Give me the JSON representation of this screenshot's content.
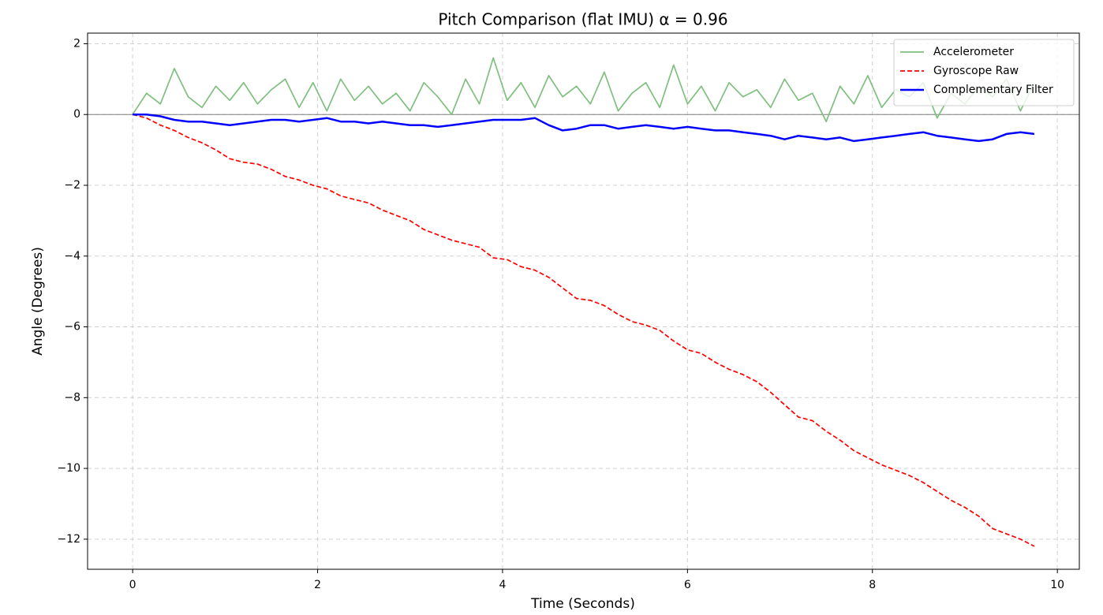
{
  "chart_data": {
    "type": "line",
    "title": "Pitch Comparison (flat IMU) α = 0.96",
    "xlabel": "Time (Seconds)",
    "ylabel": "Angle (Degrees)",
    "x": [
      0,
      0.15,
      0.3,
      0.45,
      0.6,
      0.75,
      0.9,
      1.05,
      1.2,
      1.35,
      1.5,
      1.65,
      1.8,
      1.95,
      2.1,
      2.25,
      2.4,
      2.55,
      2.7,
      2.85,
      3,
      3.15,
      3.3,
      3.45,
      3.6,
      3.75,
      3.9,
      4.05,
      4.2,
      4.35,
      4.5,
      4.65,
      4.8,
      4.95,
      5.1,
      5.25,
      5.4,
      5.55,
      5.7,
      5.85,
      6,
      6.15,
      6.3,
      6.45,
      6.6,
      6.75,
      6.9,
      7.05,
      7.2,
      7.35,
      7.5,
      7.65,
      7.8,
      7.95,
      8.1,
      8.25,
      8.4,
      8.55,
      8.7,
      8.85,
      9,
      9.15,
      9.3,
      9.45,
      9.6,
      9.75
    ],
    "series": [
      {
        "name": "Accelerometer",
        "color": "#7fbf7f",
        "linestyle": "solid",
        "values": [
          0,
          0.6,
          0.3,
          1.3,
          0.5,
          0.2,
          0.8,
          0.4,
          0.9,
          0.3,
          0.7,
          1.0,
          0.2,
          0.9,
          0.1,
          1.0,
          0.4,
          0.8,
          0.3,
          0.6,
          0.1,
          0.9,
          0.5,
          0.0,
          1.0,
          0.3,
          1.6,
          0.4,
          0.9,
          0.2,
          1.1,
          0.5,
          0.8,
          0.3,
          1.2,
          0.1,
          0.6,
          0.9,
          0.2,
          1.4,
          0.3,
          0.8,
          0.1,
          0.9,
          0.5,
          0.7,
          0.2,
          1.0,
          0.4,
          0.6,
          -0.2,
          0.8,
          0.3,
          1.1,
          0.2,
          0.7,
          0.5,
          0.9,
          -0.1,
          0.6,
          0.3,
          0.8,
          0.5,
          1.0,
          0.1,
          0.9
        ]
      },
      {
        "name": "Gyroscope Raw",
        "color": "#ff0000",
        "linestyle": "dashed",
        "values": [
          0,
          -0.1,
          -0.3,
          -0.45,
          -0.65,
          -0.8,
          -1.0,
          -1.25,
          -1.35,
          -1.4,
          -1.55,
          -1.75,
          -1.85,
          -2.0,
          -2.1,
          -2.3,
          -2.4,
          -2.5,
          -2.7,
          -2.85,
          -3.0,
          -3.25,
          -3.4,
          -3.55,
          -3.65,
          -3.75,
          -4.05,
          -4.1,
          -4.3,
          -4.4,
          -4.6,
          -4.9,
          -5.2,
          -5.25,
          -5.4,
          -5.65,
          -5.85,
          -5.95,
          -6.1,
          -6.4,
          -6.65,
          -6.75,
          -7.0,
          -7.2,
          -7.35,
          -7.55,
          -7.85,
          -8.2,
          -8.55,
          -8.65,
          -8.95,
          -9.2,
          -9.5,
          -9.7,
          -9.9,
          -10.05,
          -10.2,
          -10.4,
          -10.65,
          -10.9,
          -11.1,
          -11.35,
          -11.7,
          -11.85,
          -12.0,
          -12.2
        ]
      },
      {
        "name": "Complementary Filter",
        "color": "#0000ff",
        "linestyle": "solid",
        "values": [
          0,
          0,
          -0.05,
          -0.15,
          -0.2,
          -0.2,
          -0.25,
          -0.3,
          -0.25,
          -0.2,
          -0.15,
          -0.15,
          -0.2,
          -0.15,
          -0.1,
          -0.2,
          -0.2,
          -0.25,
          -0.2,
          -0.25,
          -0.3,
          -0.3,
          -0.35,
          -0.3,
          -0.25,
          -0.2,
          -0.15,
          -0.15,
          -0.15,
          -0.1,
          -0.3,
          -0.45,
          -0.4,
          -0.3,
          -0.3,
          -0.4,
          -0.35,
          -0.3,
          -0.35,
          -0.4,
          -0.35,
          -0.4,
          -0.45,
          -0.45,
          -0.5,
          -0.55,
          -0.6,
          -0.7,
          -0.6,
          -0.65,
          -0.7,
          -0.65,
          -0.75,
          -0.7,
          -0.65,
          -0.6,
          -0.55,
          -0.5,
          -0.6,
          -0.65,
          -0.7,
          -0.75,
          -0.7,
          -0.55,
          -0.5,
          -0.55
        ]
      }
    ],
    "hline": 0,
    "xlim": [
      -0.4875,
      10.2375
    ],
    "xticks": [
      0,
      2,
      4,
      6,
      8,
      10
    ],
    "ylim": [
      -12.85,
      2.3
    ],
    "yticks": [
      {
        "value": -12,
        "label": "−12"
      },
      {
        "value": -10,
        "label": "−10"
      },
      {
        "value": -8,
        "label": "−8"
      },
      {
        "value": -6,
        "label": "−6"
      },
      {
        "value": -4,
        "label": "−4"
      },
      {
        "value": -2,
        "label": "−2"
      },
      0,
      2
    ],
    "grid": true,
    "legend": "upper right"
  }
}
